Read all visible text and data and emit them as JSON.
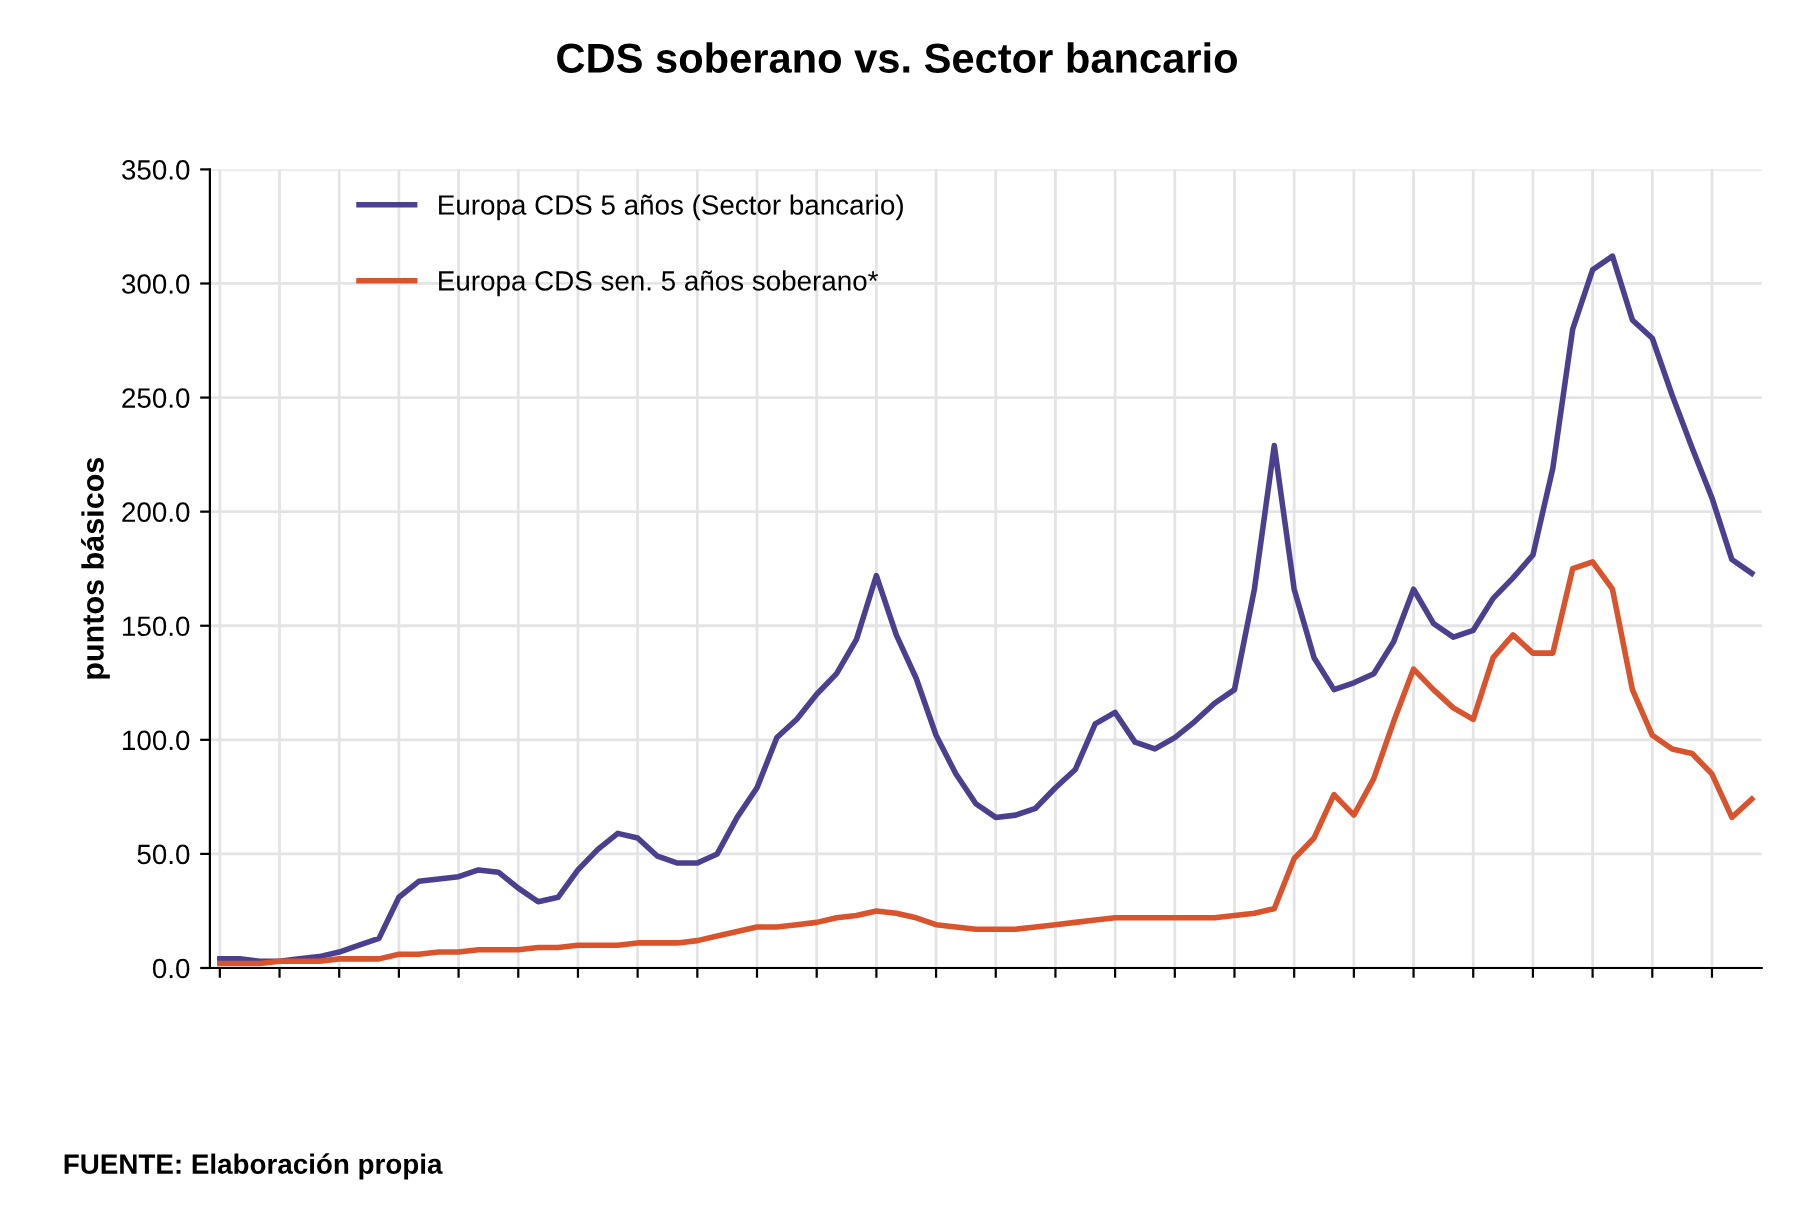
{
  "chart_data": {
    "type": "line",
    "title": "CDS soberano vs. Sector bancario",
    "ylabel": "puntos básicos",
    "categories": [
      null,
      null,
      null,
      null,
      null,
      null,
      null,
      null,
      null,
      null,
      null,
      null,
      null,
      null,
      null,
      null,
      null,
      null,
      null,
      null,
      null,
      null,
      null,
      null,
      null,
      null,
      null,
      null,
      null,
      null,
      null,
      null,
      null,
      null,
      null,
      null,
      null,
      null,
      null,
      null,
      null,
      null,
      null,
      null,
      null,
      null,
      null,
      null,
      null,
      null,
      null,
      null,
      null,
      null,
      null,
      null,
      null,
      null,
      null,
      null,
      null,
      null,
      null,
      null,
      null,
      null,
      null,
      null,
      null,
      null,
      null,
      null,
      null,
      null,
      null,
      null,
      null,
      null
    ],
    "series": [
      {
        "name": "Europa CDS 5 años (Sector bancario)",
        "color": "#4b3f8f",
        "values": [
          4,
          4,
          3,
          3,
          4,
          5,
          7,
          10,
          13,
          31,
          38,
          39,
          40,
          43,
          42,
          35,
          29,
          31,
          43,
          52,
          59,
          57,
          49,
          46,
          46,
          50,
          66,
          79,
          101,
          109,
          120,
          129,
          144,
          172,
          146,
          127,
          102,
          85,
          72,
          66,
          67,
          70,
          79,
          87,
          107,
          112,
          99,
          96,
          101,
          108,
          116,
          122,
          166,
          229,
          166,
          136,
          122,
          125,
          129,
          143,
          166,
          151,
          145,
          148,
          162,
          171,
          181,
          219,
          280,
          306,
          312,
          284,
          276,
          251,
          228,
          206,
          179,
          173
        ]
      },
      {
        "name": "Europa CDS sen. 5 años soberano*",
        "color": "#d9542c",
        "values": [
          2,
          2,
          2,
          3,
          3,
          3,
          4,
          4,
          4,
          6,
          6,
          7,
          7,
          8,
          8,
          8,
          9,
          9,
          10,
          10,
          10,
          11,
          11,
          11,
          12,
          14,
          16,
          18,
          18,
          19,
          20,
          22,
          23,
          25,
          24,
          22,
          19,
          18,
          17,
          17,
          17,
          18,
          19,
          20,
          21,
          22,
          22,
          22,
          22,
          22,
          22,
          23,
          24,
          26,
          48,
          57,
          76,
          67,
          83,
          108,
          131,
          122,
          114,
          109,
          136,
          146,
          138,
          138,
          175,
          178,
          166,
          122,
          102,
          96,
          94,
          85,
          66,
          74
        ]
      }
    ],
    "ylim": [
      0,
      350
    ],
    "yticks": [
      {
        "value": 0,
        "label": "0.0"
      },
      {
        "value": 50,
        "label": "50.0"
      },
      {
        "value": 100,
        "label": "100.0"
      },
      {
        "value": 150,
        "label": "150.0"
      },
      {
        "value": 200,
        "label": "200.0"
      },
      {
        "value": 250,
        "label": "250.0"
      },
      {
        "value": 300,
        "label": "300.0"
      },
      {
        "value": 350,
        "label": "350.0"
      }
    ],
    "grid": true,
    "legend": "top left",
    "tick_labels": "y",
    "annotations": [
      "FUENTE: Elaboración propia"
    ]
  }
}
